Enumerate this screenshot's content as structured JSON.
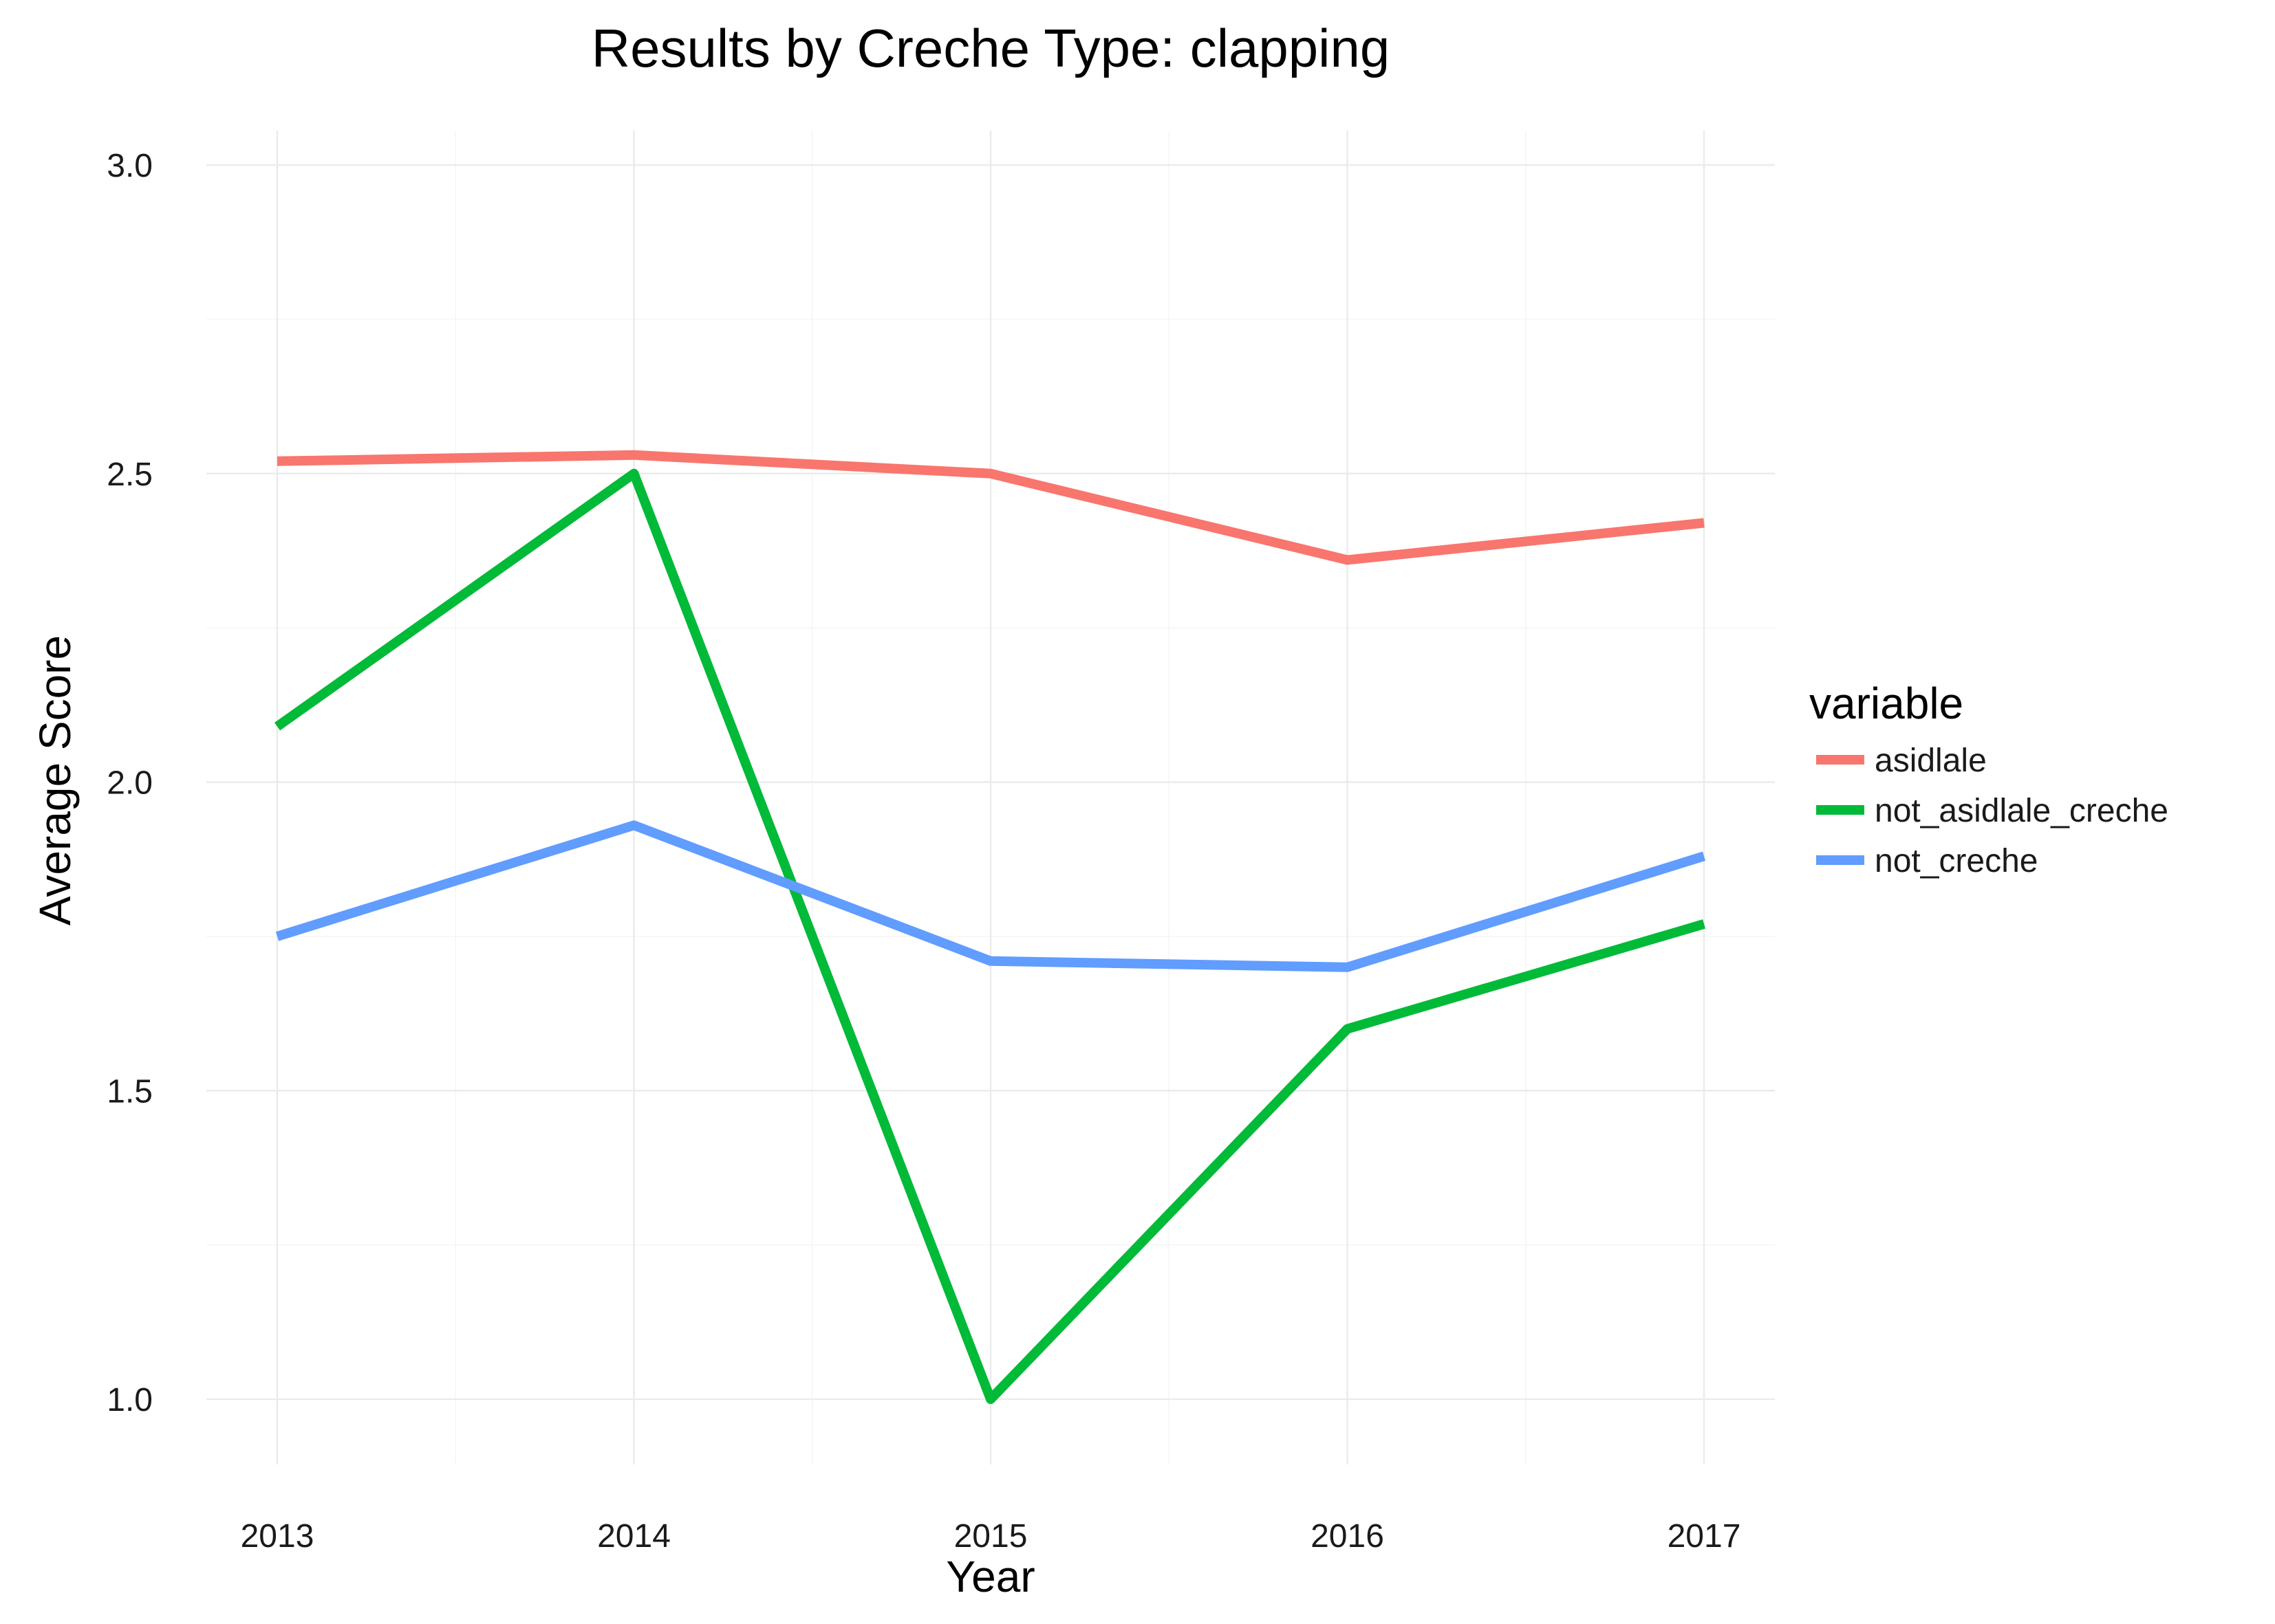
{
  "chart_data": {
    "type": "line",
    "title": "Results by Creche Type: clapping",
    "xlabel": "Year",
    "ylabel": "Average Score",
    "x": [
      2013,
      2014,
      2015,
      2016,
      2017
    ],
    "x_tick_labels": [
      "2013",
      "2014",
      "2015",
      "2016",
      "2017"
    ],
    "y_ticks": [
      1.0,
      1.5,
      2.0,
      2.5,
      3.0
    ],
    "y_tick_labels": [
      "1.0",
      "1.5",
      "2.0",
      "2.5",
      "3.0"
    ],
    "ylim": [
      1.0,
      3.0
    ],
    "grid": true,
    "legend": {
      "title": "variable",
      "position": "right"
    },
    "series": [
      {
        "name": "asidlale",
        "color": "#F8766D",
        "values": [
          2.52,
          2.53,
          2.5,
          2.36,
          2.42
        ]
      },
      {
        "name": "not_asidlale_creche",
        "color": "#00BA38",
        "values": [
          2.09,
          2.5,
          1.0,
          1.6,
          1.77
        ]
      },
      {
        "name": "not_creche",
        "color": "#619CFF",
        "values": [
          1.75,
          1.93,
          1.71,
          1.7,
          1.88
        ]
      }
    ]
  }
}
